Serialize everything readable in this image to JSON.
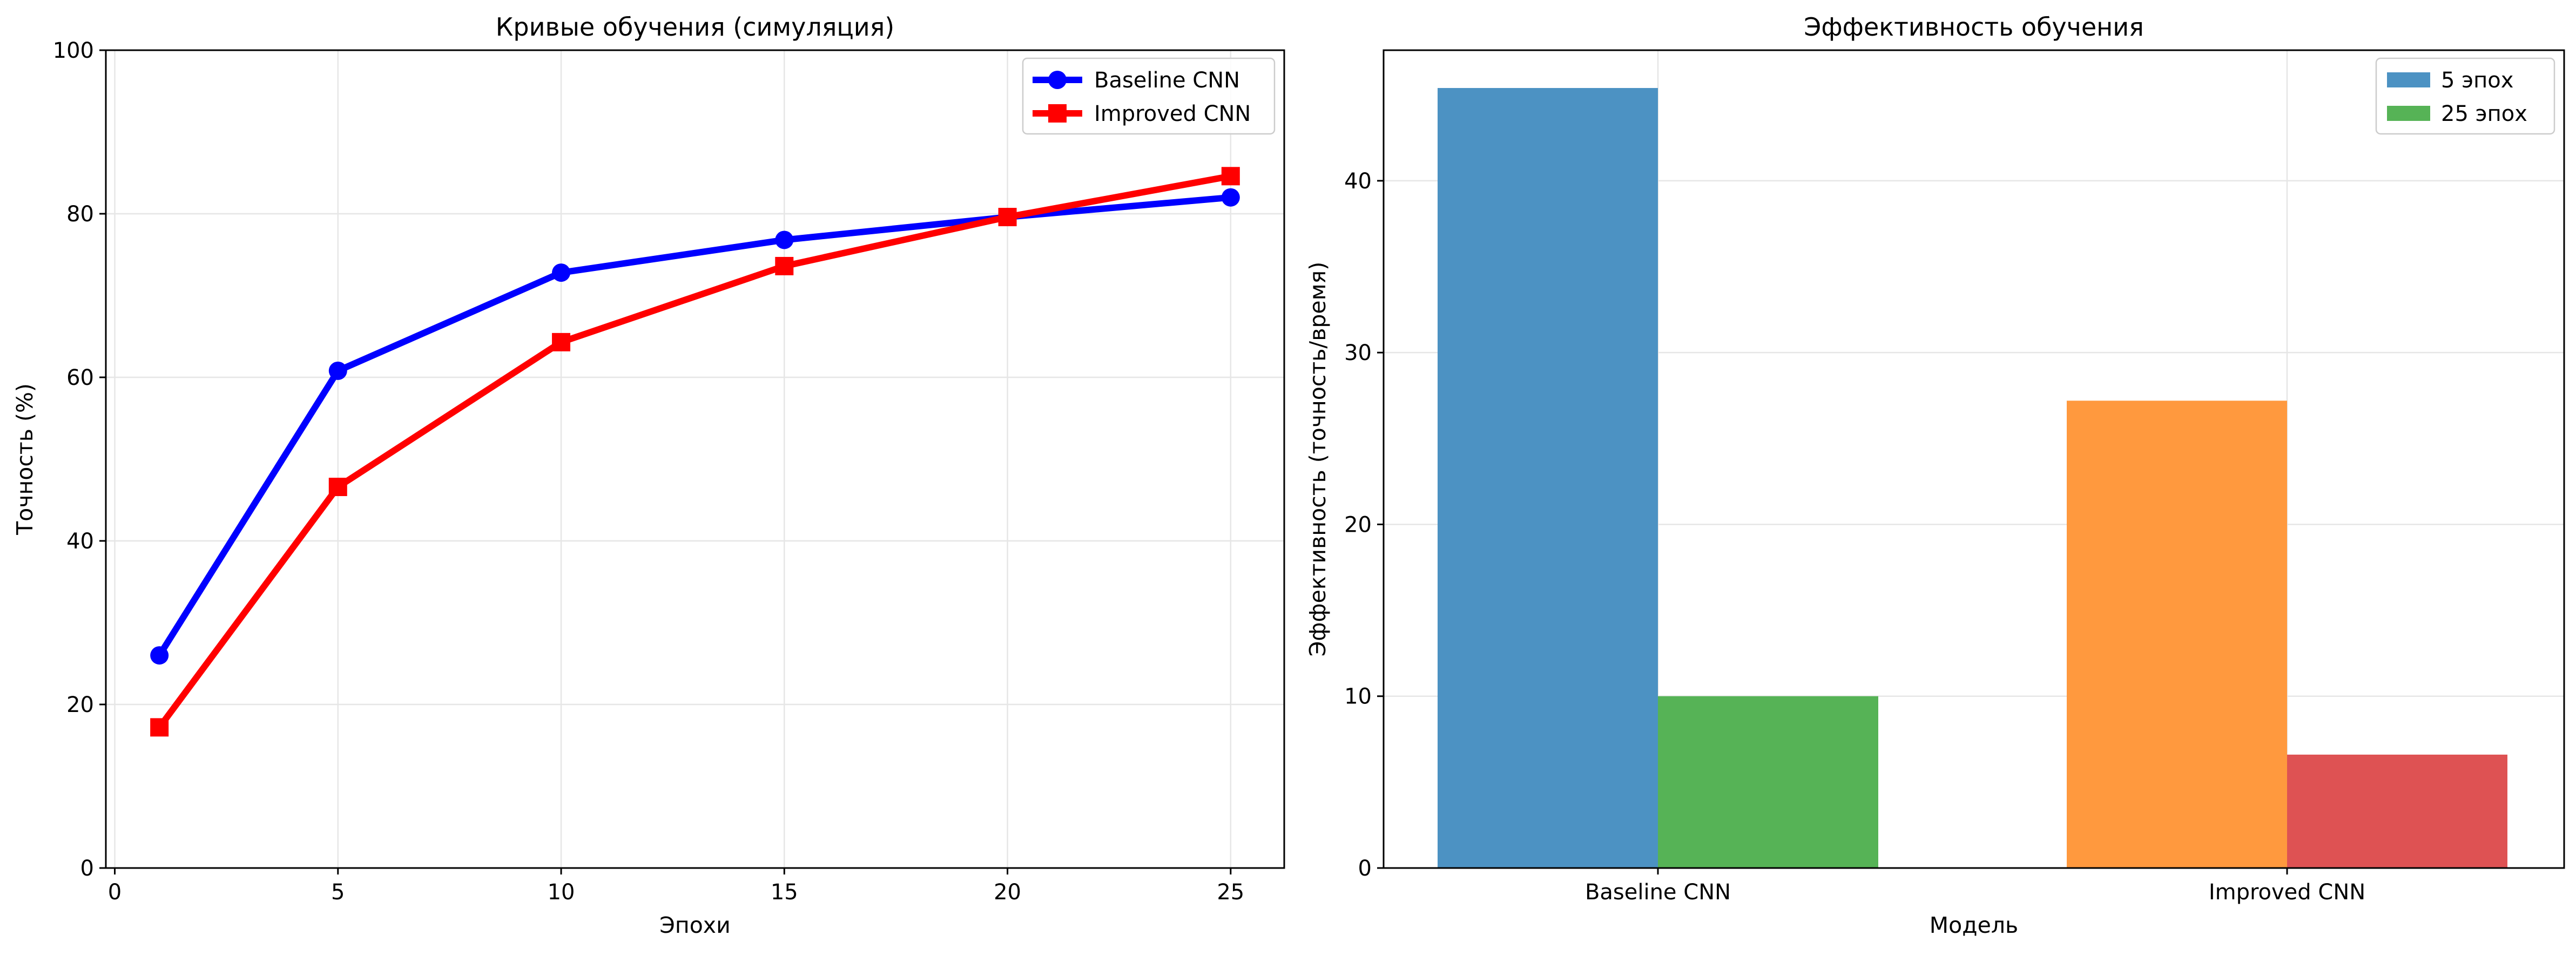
{
  "chart_data": [
    {
      "type": "line",
      "title": "Кривые обучения (симуляция)",
      "xlabel": "Эпохи",
      "ylabel": "Точность (%)",
      "xlim": [
        -0.2,
        26.2
      ],
      "ylim": [
        0,
        100
      ],
      "x": [
        1,
        5,
        10,
        15,
        20,
        25
      ],
      "xticks": [
        0,
        5,
        10,
        15,
        20,
        25
      ],
      "yticks": [
        0,
        20,
        40,
        60,
        80,
        100
      ],
      "grid": true,
      "legend_position": "top-right",
      "series": [
        {
          "name": "Baseline CNN",
          "color": "#0000ff",
          "marker": "circle",
          "values": [
            26.0,
            60.8,
            72.8,
            76.8,
            79.6,
            82.0
          ]
        },
        {
          "name": "Improved CNN",
          "color": "#ff0000",
          "marker": "square",
          "values": [
            17.2,
            46.6,
            64.3,
            73.6,
            79.6,
            84.6
          ]
        }
      ]
    },
    {
      "type": "bar",
      "title": "Эффективность обучения",
      "xlabel": "Модель",
      "ylabel": "Эффективность (точность/время)",
      "ylim": [
        0,
        47.6
      ],
      "yticks": [
        0,
        10,
        20,
        30,
        40
      ],
      "grid": true,
      "legend_position": "top-right",
      "categories": [
        "Baseline CNN",
        "Improved CNN"
      ],
      "series": [
        {
          "name": "5 эпох",
          "legend_color": "#4c92c3",
          "values": [
            45.4,
            27.2
          ],
          "bar_colors": [
            "#4c92c3",
            "#ff993e"
          ]
        },
        {
          "name": "25 эпох",
          "legend_color": "#56b356",
          "values": [
            10.0,
            6.6
          ],
          "bar_colors": [
            "#56b356",
            "#de5253"
          ]
        }
      ]
    }
  ]
}
